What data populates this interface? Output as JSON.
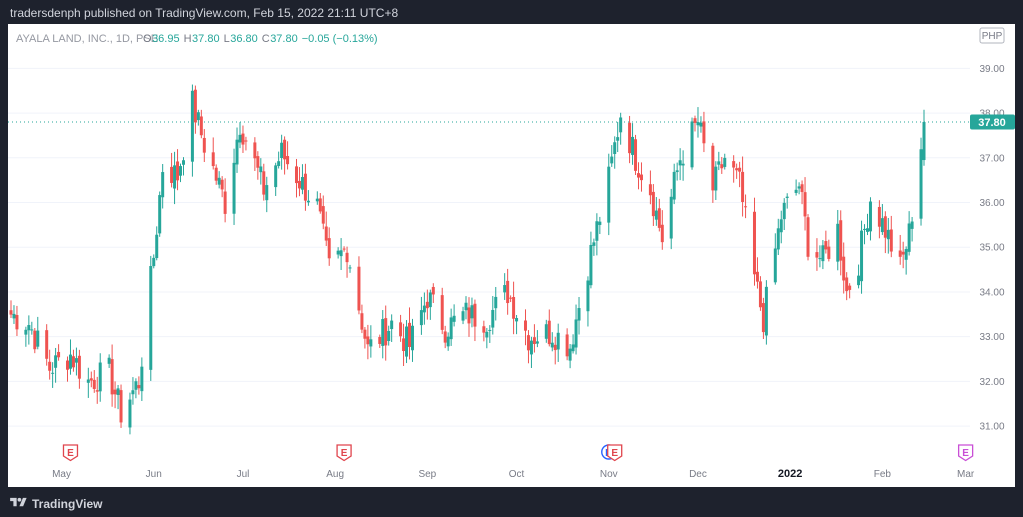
{
  "header": {
    "publisher": "tradersdenph published on TradingView.com, Feb 15, 2022 21:11 UTC+8"
  },
  "footer": {
    "brand": "TradingView"
  },
  "legend": {
    "symbol": "AYALA LAND, INC., 1D, PSE",
    "o_label": "O",
    "o_value": "36.95",
    "h_label": "H",
    "h_value": "37.80",
    "l_label": "L",
    "l_value": "36.80",
    "c_label": "C",
    "c_value": "37.80",
    "change": "−0.05 (−0.13%)"
  },
  "currency_badge": "PHP",
  "last_price_label": "37.80",
  "colors": {
    "up": "#26a69a",
    "down": "#ef5350",
    "earnings": "#e0454d",
    "dividend": "#2962ff",
    "future_earnings": "#c94fd6",
    "background": "#1e222d",
    "panel": "#ffffff"
  },
  "chart_data": {
    "type": "candlestick",
    "y_axis_ticks": [
      "31.00",
      "32.00",
      "33.00",
      "34.00",
      "35.00",
      "36.00",
      "37.00",
      "38.00",
      "39.00"
    ],
    "ylim": [
      30.6,
      39.5
    ],
    "x_axis_labels": [
      {
        "label": "May",
        "date": "2021-05-01",
        "bold": false
      },
      {
        "label": "Jun",
        "date": "2021-06-01",
        "bold": false
      },
      {
        "label": "Jul",
        "date": "2021-07-01",
        "bold": false
      },
      {
        "label": "Aug",
        "date": "2021-08-01",
        "bold": false
      },
      {
        "label": "Sep",
        "date": "2021-09-01",
        "bold": false
      },
      {
        "label": "Oct",
        "date": "2021-10-01",
        "bold": false
      },
      {
        "label": "Nov",
        "date": "2021-11-01",
        "bold": false
      },
      {
        "label": "Dec",
        "date": "2021-12-01",
        "bold": false
      },
      {
        "label": "2022",
        "date": "2022-01-01",
        "bold": true
      },
      {
        "label": "Feb",
        "date": "2022-02-01",
        "bold": false
      },
      {
        "label": "Mar",
        "date": "2022-03-01",
        "bold": false
      }
    ],
    "last_price": 37.8,
    "events": [
      {
        "date": "2021-05-04",
        "type": "earnings",
        "label": "E"
      },
      {
        "date": "2021-08-04",
        "type": "earnings",
        "label": "E"
      },
      {
        "date": "2021-11-01",
        "type": "dividend",
        "label": "D"
      },
      {
        "date": "2021-11-03",
        "type": "earnings",
        "label": "E"
      },
      {
        "date": "2022-03-01",
        "type": "future_earnings",
        "label": "E"
      }
    ],
    "anchors": [
      [
        "2021-04-14",
        33.5
      ],
      [
        "2021-04-20",
        33.3
      ],
      [
        "2021-04-27",
        32.3
      ],
      [
        "2021-05-04",
        32.6
      ],
      [
        "2021-05-10",
        32.0
      ],
      [
        "2021-05-17",
        32.2
      ],
      [
        "2021-05-21",
        31.3
      ],
      [
        "2021-05-27",
        32.0
      ],
      [
        "2021-06-01",
        34.8
      ],
      [
        "2021-06-04",
        36.8
      ],
      [
        "2021-06-09",
        36.6
      ],
      [
        "2021-06-14",
        38.2
      ],
      [
        "2021-06-18",
        37.3
      ],
      [
        "2021-06-25",
        36.0
      ],
      [
        "2021-06-30",
        37.8
      ],
      [
        "2021-07-08",
        36.3
      ],
      [
        "2021-07-14",
        37.1
      ],
      [
        "2021-07-20",
        36.5
      ],
      [
        "2021-07-26",
        35.9
      ],
      [
        "2021-07-30",
        34.5
      ],
      [
        "2021-08-05",
        35.0
      ],
      [
        "2021-08-12",
        32.7
      ],
      [
        "2021-08-20",
        33.3
      ],
      [
        "2021-08-26",
        32.8
      ],
      [
        "2021-09-01",
        33.9
      ],
      [
        "2021-09-07",
        33.2
      ],
      [
        "2021-09-14",
        33.5
      ],
      [
        "2021-09-21",
        33.4
      ],
      [
        "2021-09-28",
        34.0
      ],
      [
        "2021-10-05",
        33.0
      ],
      [
        "2021-10-13",
        33.1
      ],
      [
        "2021-10-19",
        32.8
      ],
      [
        "2021-10-25",
        34.6
      ],
      [
        "2021-11-01",
        36.5
      ],
      [
        "2021-11-05",
        38.0
      ],
      [
        "2021-11-10",
        37.0
      ],
      [
        "2021-11-15",
        36.3
      ],
      [
        "2021-11-19",
        35.2
      ],
      [
        "2021-11-25",
        37.0
      ],
      [
        "2021-12-01",
        37.8
      ],
      [
        "2021-12-06",
        36.3
      ],
      [
        "2021-12-10",
        37.0
      ],
      [
        "2021-12-15",
        36.4
      ],
      [
        "2021-12-20",
        34.3
      ],
      [
        "2021-12-23",
        33.4
      ],
      [
        "2021-12-29",
        35.7
      ],
      [
        "2022-01-04",
        36.4
      ],
      [
        "2022-01-07",
        35.1
      ],
      [
        "2022-01-12",
        34.7
      ],
      [
        "2022-01-17",
        35.4
      ],
      [
        "2022-01-20",
        34.0
      ],
      [
        "2022-01-24",
        34.7
      ],
      [
        "2022-01-28",
        36.1
      ],
      [
        "2022-02-02",
        35.4
      ],
      [
        "2022-02-07",
        34.5
      ],
      [
        "2022-02-10",
        35.3
      ],
      [
        "2022-02-15",
        37.8
      ]
    ]
  }
}
